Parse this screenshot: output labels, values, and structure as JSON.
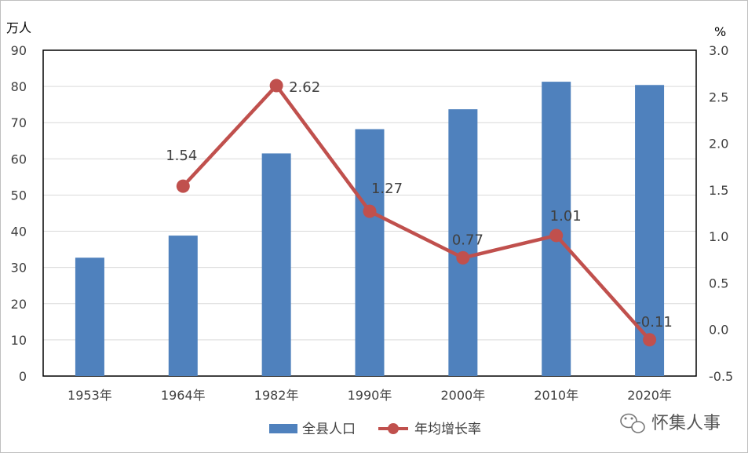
{
  "chart_data": {
    "type": "bar+line",
    "title": "",
    "categories": [
      "1953年",
      "1964年",
      "1982年",
      "1990年",
      "2000年",
      "2010年",
      "2020年"
    ],
    "left_axis": {
      "unit": "万人",
      "ylim": [
        0,
        90
      ],
      "ticks": [
        "0",
        "10",
        "20",
        "30",
        "40",
        "50",
        "60",
        "70",
        "80",
        "90"
      ]
    },
    "right_axis": {
      "unit": "%",
      "ylim": [
        -0.5,
        3.0
      ],
      "ticks": [
        "-0.5",
        "0.0",
        "0.5",
        "1.0",
        "1.5",
        "2.0",
        "2.5",
        "3.0"
      ]
    },
    "series": [
      {
        "name": "全县人口",
        "type": "bar",
        "axis": "left",
        "color": "#4f81bd",
        "values": [
          32.7,
          38.8,
          61.5,
          68.2,
          73.7,
          81.3,
          80.4
        ]
      },
      {
        "name": "年均增长率",
        "type": "line",
        "axis": "right",
        "color": "#c0504d",
        "values": [
          null,
          1.54,
          2.62,
          1.27,
          0.77,
          1.01,
          -0.11
        ],
        "labels": [
          "",
          "1.54",
          "2.62",
          "1.27",
          "0.77",
          "1.01",
          "-0.11"
        ]
      }
    ],
    "grid": true,
    "legend": "bottom"
  },
  "watermark": {
    "text": "怀集人事",
    "icon": "wechat-icon"
  }
}
